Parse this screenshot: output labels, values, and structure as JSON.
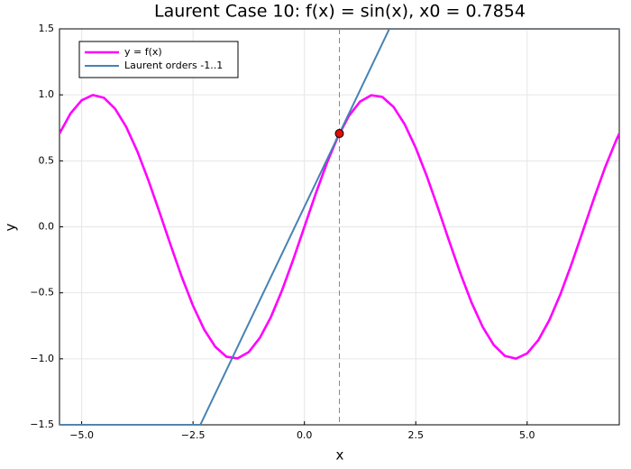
{
  "chart_data": {
    "type": "line",
    "title": "Laurent Case 10: f(x) = sin(x), x0 = 0.7854",
    "x_label": "x",
    "y_label": "y",
    "x": [
      -5.4978,
      -5.25,
      -5.0,
      -4.75,
      -4.5,
      -4.25,
      -4.0,
      -3.75,
      -3.5,
      -3.25,
      -3.0,
      -2.75,
      -2.5,
      -2.25,
      -2.0,
      -1.75,
      -1.5,
      -1.25,
      -1.0,
      -0.75,
      -0.5,
      -0.25,
      0.0,
      0.25,
      0.5,
      0.75,
      1.0,
      1.25,
      1.5,
      1.75,
      2.0,
      2.25,
      2.5,
      2.75,
      3.0,
      3.25,
      3.5,
      3.75,
      4.0,
      4.25,
      4.5,
      4.75,
      5.0,
      5.25,
      5.5,
      5.75,
      6.0,
      6.25,
      6.5,
      6.75,
      7.0,
      7.0686
    ],
    "series": [
      {
        "name": "y = f(x)",
        "color": "#ff00ff",
        "width": 2.6,
        "values": [
          0.707,
          0.859,
          0.959,
          0.999,
          0.978,
          0.895,
          0.757,
          0.572,
          0.351,
          0.108,
          -0.141,
          -0.382,
          -0.598,
          -0.778,
          -0.909,
          -0.984,
          -0.997,
          -0.949,
          -0.841,
          -0.682,
          -0.479,
          -0.247,
          0.0,
          0.247,
          0.479,
          0.682,
          0.841,
          0.949,
          0.997,
          0.984,
          0.909,
          0.778,
          0.598,
          0.382,
          0.141,
          -0.108,
          -0.351,
          -0.572,
          -0.757,
          -0.895,
          -0.978,
          -0.999,
          -0.959,
          -0.859,
          -0.706,
          -0.508,
          -0.279,
          -0.033,
          0.215,
          0.45,
          0.657,
          0.707
        ]
      },
      {
        "name": "Laurent orders -1..1",
        "color": "#4682b4",
        "width": 2,
        "x": [
          -5.4978,
          -2.336,
          1.907,
          7.0686
        ],
        "values": [
          -1.5,
          -1.5,
          1.5,
          1.5
        ]
      }
    ],
    "vline": 0.7854,
    "point": {
      "x": 0.7854,
      "y": 0.7071,
      "color": "#dd1100"
    },
    "xlim": [
      -5.4978,
      7.0686
    ],
    "ylim": [
      -1.5,
      1.5
    ],
    "xticks": [
      {
        "value": -5,
        "label": "−5.0"
      },
      {
        "value": -2.5,
        "label": "−2.5"
      },
      {
        "value": 0,
        "label": "0.0"
      },
      {
        "value": 2.5,
        "label": "2.5"
      },
      {
        "value": 5,
        "label": "5.0"
      }
    ],
    "yticks": [
      {
        "value": -1.5,
        "label": "−1.5"
      },
      {
        "value": -1,
        "label": "−1.0"
      },
      {
        "value": -0.5,
        "label": "−0.5"
      },
      {
        "value": 0,
        "label": "0.0"
      },
      {
        "value": 0.5,
        "label": "0.5"
      },
      {
        "value": 1,
        "label": "1.0"
      },
      {
        "value": 1.5,
        "label": "1.5"
      }
    ],
    "grid": true,
    "legend": "top-left"
  }
}
